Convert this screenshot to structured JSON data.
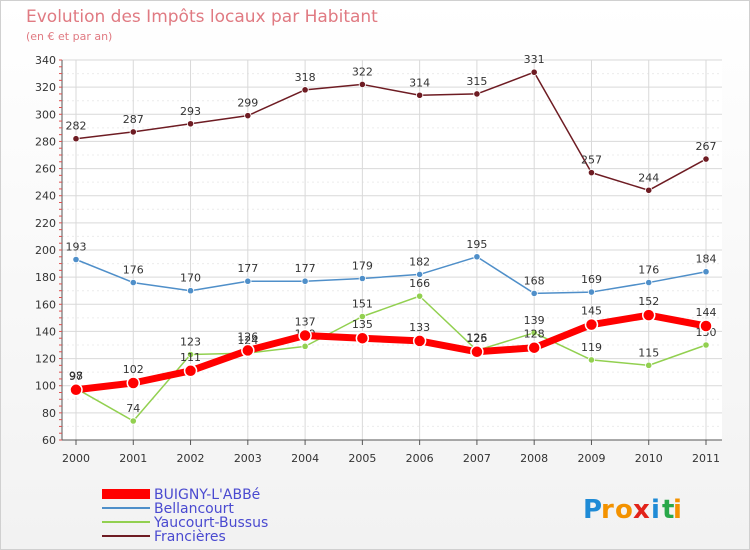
{
  "chart_data": {
    "type": "line",
    "title": "Evolution des Impôts locaux par Habitant",
    "subtitle": "(en € et par an)",
    "categories": [
      "2000",
      "2001",
      "2002",
      "2003",
      "2004",
      "2005",
      "2006",
      "2007",
      "2008",
      "2009",
      "2010",
      "2011"
    ],
    "ylim": [
      60,
      340
    ],
    "yticks": [
      60,
      80,
      100,
      120,
      140,
      160,
      180,
      200,
      220,
      240,
      260,
      280,
      300,
      320,
      340
    ],
    "series": [
      {
        "name": "Francières",
        "color": "#6e1c23",
        "values": [
          282,
          287,
          293,
          299,
          318,
          322,
          314,
          315,
          331,
          257,
          244,
          267
        ]
      },
      {
        "name": "Bellancourt",
        "color": "#4f8fc9",
        "values": [
          193,
          176,
          170,
          177,
          177,
          179,
          182,
          195,
          168,
          169,
          176,
          184
        ]
      },
      {
        "name": "Yaucourt-Bussus",
        "color": "#92d050",
        "values": [
          98,
          74,
          123,
          124,
          129,
          151,
          166,
          126,
          139,
          119,
          115,
          130
        ]
      },
      {
        "name": "BUIGNY-L'ABBé",
        "color": "#ff0000",
        "values": [
          97,
          102,
          111,
          126,
          137,
          135,
          133,
          125,
          128,
          145,
          152,
          144
        ]
      }
    ],
    "legend": [
      "BUIGNY-L'ABBé",
      "Bellancourt",
      "Yaucourt-Bussus",
      "Francières"
    ],
    "legend_position": "bottom-left"
  },
  "logo": {
    "letters": [
      "P",
      "r",
      "o",
      "x",
      "i",
      "t",
      "i"
    ]
  }
}
